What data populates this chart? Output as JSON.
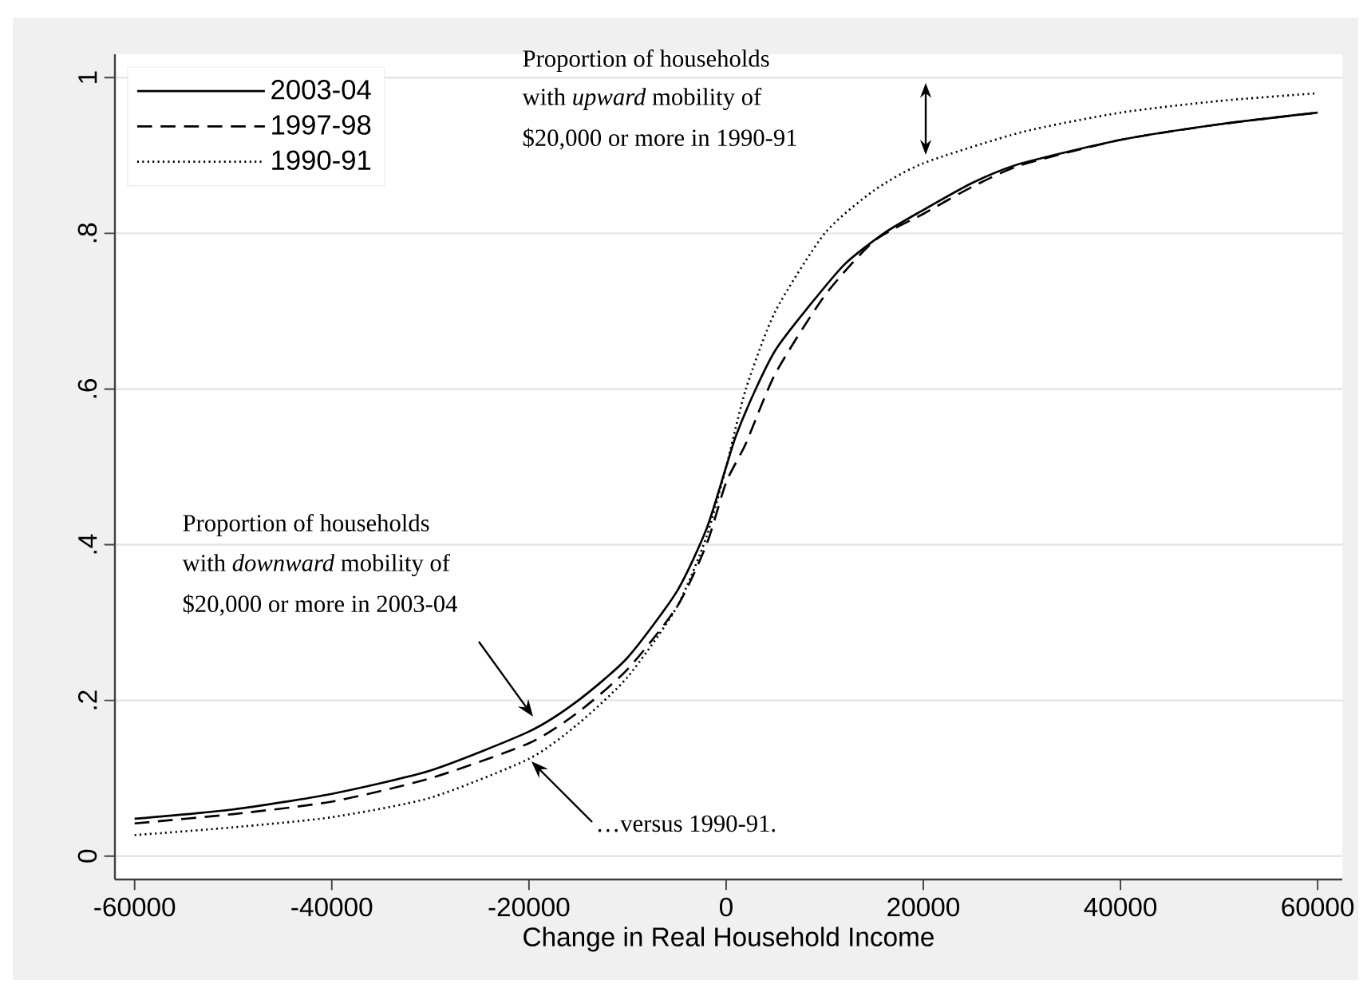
{
  "chart_data": {
    "type": "line",
    "xlabel": "Change in Real Household Income",
    "xlim": [
      -62000,
      62500
    ],
    "ylim": [
      -0.03,
      1.03
    ],
    "xticks": [
      -60000,
      -40000,
      -20000,
      0,
      20000,
      40000,
      60000
    ],
    "yticks": [
      0,
      {
        "value": 0.2,
        "label": ".2"
      },
      {
        "value": 0.4,
        "label": ".4"
      },
      {
        "value": 0.6,
        "label": ".6"
      },
      {
        "value": 0.8,
        "label": ".8"
      },
      1
    ],
    "grid": "y",
    "legend": "top left",
    "annotations": [
      "Proportion of households",
      "with *upward* mobility of",
      "$20,000 or more in 1990-91",
      "Proportion of households",
      "with *downward* mobility of",
      "$20,000 or more in 2003-04",
      "…versus 1990-91."
    ],
    "series": [
      {
        "name": "2003-04",
        "color": "#000000",
        "line_style": "solid",
        "x": [
          -60000,
          -50000,
          -40000,
          -30000,
          -20000,
          -15000,
          -10000,
          -5000,
          -2000,
          0,
          1000,
          3000,
          5000,
          8000,
          12000,
          16000,
          20000,
          25000,
          30000,
          40000,
          50000,
          60000
        ],
        "values": [
          0.048,
          0.06,
          0.08,
          0.11,
          0.16,
          0.2,
          0.255,
          0.34,
          0.42,
          0.5,
          0.54,
          0.6,
          0.65,
          0.7,
          0.76,
          0.8,
          0.83,
          0.865,
          0.89,
          0.92,
          0.94,
          0.955
        ]
      },
      {
        "name": "1997-98",
        "color": "#000000",
        "line_style": "dashed",
        "x": [
          -60000,
          -50000,
          -40000,
          -30000,
          -20000,
          -15000,
          -10000,
          -5000,
          -2000,
          0,
          2000,
          5000,
          10000,
          15000,
          20000,
          25000,
          30000,
          40000,
          50000,
          60000
        ],
        "values": [
          0.042,
          0.054,
          0.07,
          0.1,
          0.145,
          0.185,
          0.24,
          0.32,
          0.4,
          0.48,
          0.53,
          0.62,
          0.72,
          0.79,
          0.825,
          0.86,
          0.888,
          0.92,
          0.94,
          0.955
        ]
      },
      {
        "name": "1990-91",
        "color": "#000000",
        "line_style": "dotted",
        "x": [
          -60000,
          -50000,
          -40000,
          -30000,
          -20000,
          -15000,
          -10000,
          -5000,
          -2000,
          0,
          2000,
          5000,
          10000,
          15000,
          20000,
          30000,
          40000,
          50000,
          60000
        ],
        "values": [
          0.027,
          0.037,
          0.05,
          0.075,
          0.125,
          0.17,
          0.23,
          0.32,
          0.41,
          0.5,
          0.6,
          0.7,
          0.8,
          0.855,
          0.89,
          0.93,
          0.955,
          0.97,
          0.98
        ]
      }
    ]
  }
}
